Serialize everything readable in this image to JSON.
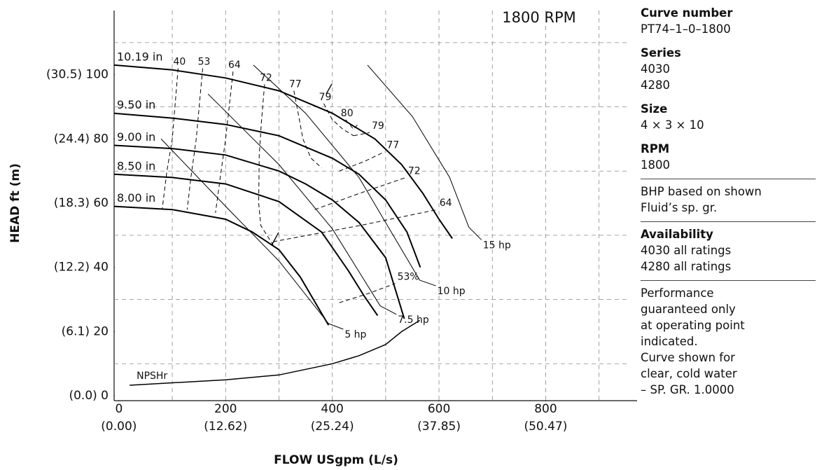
{
  "chart_data": {
    "type": "line",
    "title": "1800 RPM",
    "x_label": "FLOW USgpm (L/s)",
    "y_label": "HEAD ft (m)",
    "xlim": [
      -9,
      991
    ],
    "ylim": [
      -1.5,
      120
    ],
    "xticks": [
      {
        "value": 0,
        "label": "0",
        "label_metric": "(0.00)"
      },
      {
        "value": 200,
        "label": "200",
        "label_metric": "(12.62)"
      },
      {
        "value": 400,
        "label": "400",
        "label_metric": "(25.24)"
      },
      {
        "value": 600,
        "label": "600",
        "label_metric": "(37.85)"
      },
      {
        "value": 800,
        "label": "800",
        "label_metric": "(50.47)"
      }
    ],
    "yticks": [
      {
        "value": 0,
        "label": "(0.0) 0"
      },
      {
        "value": 20,
        "label": "(6.1) 20"
      },
      {
        "value": 40,
        "label": "(12.2) 40"
      },
      {
        "value": 60,
        "label": "(18.3) 60"
      },
      {
        "value": 80,
        "label": "(24.4) 80"
      },
      {
        "value": 100,
        "label": "(30.5) 100"
      }
    ],
    "grid": true,
    "xgrid": [
      100,
      200,
      300,
      400,
      500,
      600,
      700,
      800,
      900
    ],
    "ygrid": [
      10,
      30,
      50,
      70,
      90,
      110
    ],
    "color": "#000000",
    "impeller_curves": [
      {
        "name": "10.19 in",
        "x": [
          -9,
          100,
          200,
          300,
          400,
          480,
          530,
          570,
          600,
          625
        ],
        "values": [
          103,
          101.5,
          99,
          95,
          88,
          80,
          72,
          63,
          55,
          49
        ]
      },
      {
        "name": "9.50 in",
        "x": [
          -9,
          100,
          200,
          300,
          400,
          450,
          500,
          540,
          565
        ],
        "values": [
          88,
          86.5,
          84.5,
          81,
          74,
          69,
          61,
          51,
          40
        ]
      },
      {
        "name": "9.00 in",
        "x": [
          -9,
          100,
          200,
          300,
          350,
          400,
          450,
          500,
          535
        ],
        "values": [
          78,
          77,
          75,
          70,
          66,
          61,
          54,
          43,
          24
        ]
      },
      {
        "name": "8.50 in",
        "x": [
          -9,
          100,
          200,
          300,
          380,
          430,
          460,
          485
        ],
        "values": [
          69,
          68,
          66,
          60.5,
          51,
          39,
          31,
          25
        ]
      },
      {
        "name": "8.00 in",
        "x": [
          -9,
          100,
          200,
          250,
          300,
          340,
          393
        ],
        "values": [
          59,
          58,
          55,
          51,
          45.5,
          37,
          22
        ]
      }
    ],
    "hp_lines": [
      {
        "name": "5 hp",
        "x": [
          79,
          200,
          300,
          393
        ],
        "values": [
          80,
          59,
          42,
          22.5
        ]
      },
      {
        "name": "7.5 hp",
        "x": [
          167,
          300,
          400,
          490
        ],
        "values": [
          94,
          72,
          52,
          28
        ]
      },
      {
        "name": "10 hp",
        "x": [
          252,
          350,
          450,
          564
        ],
        "values": [
          103,
          88,
          68,
          36
        ]
      },
      {
        "name": "15 hp",
        "x": [
          466,
          550,
          620,
          656
        ],
        "values": [
          103,
          87,
          68,
          52.5
        ]
      }
    ],
    "efficiency_lines": [
      {
        "name": "40",
        "x": [
          111,
          100,
          90,
          81
        ],
        "values": [
          102,
          80,
          70,
          58
        ]
      },
      {
        "name": "53",
        "x": [
          157,
          145,
          135,
          128
        ],
        "values": [
          102,
          80,
          68,
          58
        ]
      },
      {
        "name": "64",
        "x": [
          214,
          200,
          190,
          181
        ],
        "values": [
          101,
          80,
          68,
          57
        ]
      },
      {
        "name": "72",
        "x": [
          273,
          267,
          263,
          262,
          266,
          289
        ],
        "values": [
          97,
          85,
          75,
          60,
          53,
          47
        ]
      },
      {
        "name": "77",
        "x": [
          328,
          336,
          345,
          360,
          380
        ],
        "values": [
          95,
          88,
          80,
          74,
          71
        ]
      },
      {
        "name": "79",
        "x": [
          384,
          400,
          420,
          440
        ],
        "values": [
          91,
          86,
          83,
          81
        ]
      },
      {
        "name": "80",
        "x": [
          425,
          440,
          450
        ],
        "values": [
          86,
          83,
          85
        ]
      },
      {
        "name": "79",
        "x": [
          440,
          470
        ],
        "values": [
          81,
          82
        ]
      },
      {
        "name": "77",
        "x": [
          413,
          460,
          498
        ],
        "values": [
          70,
          73,
          76
        ]
      },
      {
        "name": "72",
        "x": [
          367,
          450,
          538
        ],
        "values": [
          58,
          63,
          68
        ]
      },
      {
        "name": "64",
        "x": [
          289,
          450,
          597
        ],
        "values": [
          48,
          53,
          58
        ]
      },
      {
        "name": "53%",
        "x": [
          413,
          470,
          518
        ],
        "values": [
          29,
          32,
          35
        ]
      }
    ],
    "npshr": {
      "name": "NPSHr",
      "x": [
        20,
        200,
        300,
        400,
        450,
        500,
        530,
        564
      ],
      "values": [
        3.3,
        5,
        6.5,
        10,
        12.5,
        16,
        20,
        23.5
      ]
    }
  },
  "info": [
    {
      "heading": "Curve number",
      "lines": [
        "PT74–1–0–1800"
      ]
    },
    {
      "heading": "Series",
      "lines": [
        "4030",
        "4280"
      ]
    },
    {
      "heading": "Size",
      "lines": [
        "4 × 3 × 10"
      ]
    },
    {
      "heading": "RPM",
      "lines": [
        "1800"
      ]
    },
    {
      "lines": [
        "BHP based on shown",
        "Fluid’s sp. gr."
      ]
    },
    {
      "heading": "Availability",
      "lines": [
        "4030 all ratings",
        "4280 all ratings"
      ]
    },
    {
      "lines": [
        "Performance",
        "guaranteed only",
        "at operating point",
        "indicated.",
        "Curve shown for",
        "clear, cold water",
        "– SP. GR. 1.0000"
      ]
    }
  ]
}
